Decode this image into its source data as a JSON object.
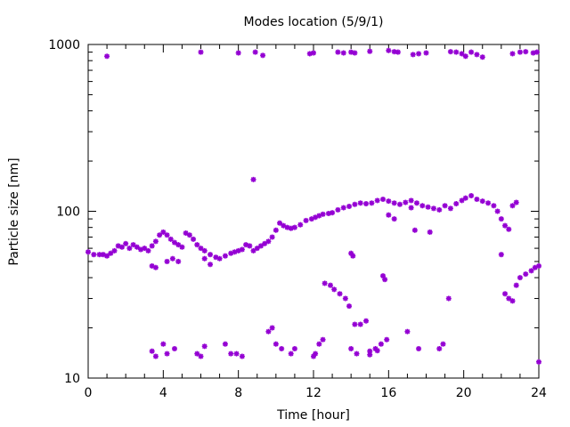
{
  "chart_data": {
    "type": "scatter",
    "title": "Modes location (5/9/1)",
    "xlabel": "Time [hour]",
    "ylabel": "Particle size [nm]",
    "xlim": [
      0,
      24
    ],
    "ylim": [
      10,
      1000
    ],
    "y_scale": "log",
    "x_ticks": [
      0,
      4,
      8,
      12,
      16,
      20,
      24
    ],
    "x_tick_labels": [
      "0",
      "4",
      "8",
      "12",
      "16",
      "20",
      "24"
    ],
    "y_ticks": [
      10,
      100,
      1000
    ],
    "y_tick_labels": [
      "10",
      "100",
      "1000"
    ],
    "grid": false,
    "legend": "none",
    "marker_color": "#9400d3",
    "series": [
      {
        "values": [
          [
            0.0,
            57
          ],
          [
            0.3,
            55
          ],
          [
            0.6,
            55
          ],
          [
            0.8,
            55
          ],
          [
            1.0,
            54
          ],
          [
            1.2,
            56
          ],
          [
            1.4,
            58
          ],
          [
            1.6,
            62
          ],
          [
            1.8,
            61
          ],
          [
            2.0,
            64
          ],
          [
            2.2,
            60
          ],
          [
            2.4,
            63
          ],
          [
            2.6,
            61
          ],
          [
            2.8,
            59
          ],
          [
            3.0,
            60
          ],
          [
            3.2,
            58
          ],
          [
            3.4,
            62
          ],
          [
            3.6,
            66
          ],
          [
            3.8,
            72
          ],
          [
            4.0,
            75
          ],
          [
            4.2,
            72
          ],
          [
            4.4,
            68
          ],
          [
            4.6,
            65
          ],
          [
            4.8,
            63
          ],
          [
            5.0,
            61
          ],
          [
            5.2,
            74
          ],
          [
            5.4,
            72
          ],
          [
            5.6,
            68
          ],
          [
            5.8,
            63
          ],
          [
            6.0,
            60
          ],
          [
            6.2,
            58
          ],
          [
            6.5,
            55
          ],
          [
            6.8,
            53
          ],
          [
            7.0,
            52
          ],
          [
            7.3,
            54
          ],
          [
            7.6,
            56
          ],
          [
            7.8,
            57
          ],
          [
            8.0,
            58
          ],
          [
            8.2,
            59
          ],
          [
            8.4,
            63
          ],
          [
            8.6,
            62
          ],
          [
            8.8,
            58
          ],
          [
            9.0,
            60
          ],
          [
            9.2,
            62
          ],
          [
            9.4,
            64
          ],
          [
            9.6,
            66
          ],
          [
            9.8,
            70
          ],
          [
            10.0,
            77
          ],
          [
            10.2,
            85
          ],
          [
            10.4,
            82
          ],
          [
            10.6,
            80
          ],
          [
            10.8,
            79
          ],
          [
            11.0,
            80
          ],
          [
            11.3,
            83
          ],
          [
            11.6,
            88
          ],
          [
            11.9,
            90
          ],
          [
            12.1,
            92
          ],
          [
            12.3,
            94
          ],
          [
            12.5,
            96
          ],
          [
            12.8,
            97
          ],
          [
            13.0,
            98
          ],
          [
            13.3,
            102
          ],
          [
            13.6,
            105
          ],
          [
            13.9,
            107
          ],
          [
            14.2,
            110
          ],
          [
            14.5,
            112
          ],
          [
            14.8,
            111
          ],
          [
            15.1,
            112
          ],
          [
            15.4,
            116
          ],
          [
            15.7,
            118
          ],
          [
            16.0,
            115
          ],
          [
            16.3,
            112
          ],
          [
            16.6,
            110
          ],
          [
            16.9,
            113
          ],
          [
            17.2,
            116
          ],
          [
            17.5,
            112
          ],
          [
            17.8,
            108
          ],
          [
            18.1,
            106
          ],
          [
            18.4,
            104
          ],
          [
            18.7,
            102
          ],
          [
            19.0,
            108
          ],
          [
            19.3,
            104
          ],
          [
            19.6,
            111
          ],
          [
            19.9,
            116
          ],
          [
            20.1,
            120
          ],
          [
            20.4,
            124
          ],
          [
            20.7,
            118
          ],
          [
            21.0,
            115
          ],
          [
            21.3,
            112
          ],
          [
            21.6,
            108
          ],
          [
            21.8,
            100
          ],
          [
            22.0,
            90
          ],
          [
            22.2,
            82
          ],
          [
            22.4,
            78
          ],
          [
            22.6,
            108
          ],
          [
            22.8,
            113
          ]
        ]
      },
      {
        "values": [
          [
            1.0,
            850
          ],
          [
            6.0,
            900
          ],
          [
            8.0,
            890
          ],
          [
            8.9,
            900
          ],
          [
            9.3,
            860
          ],
          [
            11.8,
            880
          ],
          [
            12.0,
            890
          ],
          [
            13.3,
            900
          ],
          [
            13.6,
            890
          ],
          [
            14.0,
            900
          ],
          [
            14.2,
            890
          ],
          [
            15.0,
            910
          ],
          [
            16.0,
            920
          ],
          [
            16.3,
            905
          ],
          [
            16.5,
            900
          ],
          [
            17.3,
            870
          ],
          [
            17.6,
            880
          ],
          [
            18.0,
            890
          ],
          [
            19.3,
            905
          ],
          [
            19.6,
            900
          ],
          [
            19.9,
            880
          ],
          [
            20.1,
            850
          ],
          [
            20.4,
            900
          ],
          [
            20.7,
            870
          ],
          [
            21.0,
            840
          ],
          [
            22.6,
            880
          ],
          [
            23.0,
            900
          ],
          [
            23.3,
            905
          ],
          [
            23.7,
            890
          ],
          [
            23.9,
            900
          ]
        ]
      },
      {
        "values": [
          [
            8.8,
            155
          ],
          [
            12.6,
            37
          ],
          [
            12.9,
            36
          ],
          [
            13.1,
            34
          ],
          [
            13.4,
            32
          ],
          [
            13.7,
            30
          ],
          [
            13.9,
            27
          ],
          [
            14.2,
            21
          ],
          [
            14.0,
            56
          ],
          [
            14.1,
            54
          ],
          [
            15.7,
            41
          ],
          [
            15.8,
            39
          ],
          [
            16.0,
            95
          ],
          [
            16.3,
            90
          ],
          [
            17.2,
            105
          ],
          [
            17.4,
            77
          ],
          [
            18.2,
            75
          ],
          [
            19.2,
            30
          ],
          [
            22.0,
            55
          ],
          [
            22.4,
            30
          ],
          [
            22.6,
            29
          ],
          [
            22.8,
            36
          ],
          [
            23.0,
            40
          ],
          [
            23.3,
            42
          ],
          [
            23.6,
            44
          ],
          [
            23.8,
            46
          ],
          [
            24.0,
            47
          ],
          [
            22.2,
            32
          ],
          [
            3.4,
            47
          ],
          [
            3.6,
            46
          ],
          [
            4.2,
            50
          ],
          [
            4.5,
            52
          ],
          [
            4.8,
            50
          ],
          [
            6.2,
            52
          ],
          [
            6.5,
            48
          ]
        ]
      },
      {
        "values": [
          [
            3.4,
            14.5
          ],
          [
            3.6,
            13.5
          ],
          [
            4.0,
            16
          ],
          [
            4.2,
            14
          ],
          [
            4.6,
            15
          ],
          [
            5.8,
            14
          ],
          [
            6.0,
            13.5
          ],
          [
            6.2,
            15.5
          ],
          [
            7.3,
            16
          ],
          [
            7.6,
            14
          ],
          [
            7.9,
            14
          ],
          [
            8.2,
            13.5
          ],
          [
            9.6,
            19
          ],
          [
            9.8,
            20
          ],
          [
            10.0,
            16
          ],
          [
            10.3,
            15
          ],
          [
            10.8,
            14
          ],
          [
            11.0,
            15
          ],
          [
            12.0,
            13.5
          ],
          [
            12.1,
            14
          ],
          [
            12.3,
            16
          ],
          [
            12.5,
            17
          ],
          [
            14.0,
            15
          ],
          [
            14.3,
            14
          ],
          [
            14.5,
            21
          ],
          [
            14.8,
            22
          ],
          [
            15.0,
            14.5
          ],
          [
            15.3,
            15
          ],
          [
            15.6,
            16
          ],
          [
            15.9,
            17
          ],
          [
            17.0,
            19
          ],
          [
            17.6,
            15
          ],
          [
            18.7,
            15
          ],
          [
            18.9,
            16
          ],
          [
            24.0,
            12.5
          ],
          [
            15.0,
            13.8
          ],
          [
            15.4,
            14.6
          ]
        ]
      }
    ]
  }
}
